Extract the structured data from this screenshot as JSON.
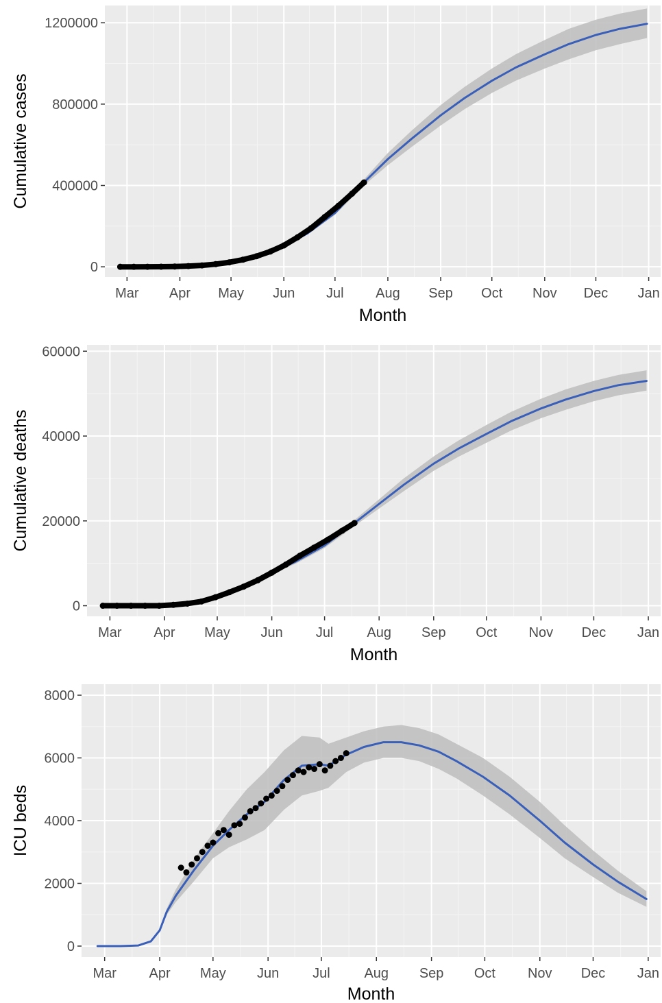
{
  "colors": {
    "panel_background": "#ebebeb",
    "grid_major": "#ffffff",
    "grid_minor": "#f5f5f5",
    "line": "#3a5fb8",
    "ribbon": "#bdbdbd",
    "points": "#000000",
    "tick_text": "#4d4d4d",
    "axis_title": "#000000"
  },
  "chart_data": [
    {
      "type": "line",
      "xlabel": "Month",
      "ylabel": "Cumulative cases",
      "x_axis": "date",
      "xlim": [
        "2020-02-17",
        "2021-01-08"
      ],
      "ylim": [
        -50000,
        1285000
      ],
      "grid": true,
      "x_ticks": [
        {
          "date": "2020-03-01",
          "label": "Mar"
        },
        {
          "date": "2020-04-01",
          "label": "Apr"
        },
        {
          "date": "2020-05-01",
          "label": "May"
        },
        {
          "date": "2020-06-01",
          "label": "Jun"
        },
        {
          "date": "2020-07-01",
          "label": "Jul"
        },
        {
          "date": "2020-08-01",
          "label": "Aug"
        },
        {
          "date": "2020-09-01",
          "label": "Sep"
        },
        {
          "date": "2020-10-01",
          "label": "Oct"
        },
        {
          "date": "2020-11-01",
          "label": "Nov"
        },
        {
          "date": "2020-12-01",
          "label": "Dec"
        },
        {
          "date": "2021-01-01",
          "label": "Jan"
        }
      ],
      "y_ticks": [
        {
          "value": 0,
          "label": "0"
        },
        {
          "value": 400000,
          "label": "400000"
        },
        {
          "value": 800000,
          "label": "800000"
        },
        {
          "value": 1200000,
          "label": "1200000"
        }
      ],
      "observed": {
        "style": "points",
        "x": [
          "2020-02-26",
          "2020-03-05",
          "2020-03-13",
          "2020-03-21",
          "2020-03-29",
          "2020-04-06",
          "2020-04-14",
          "2020-04-22",
          "2020-04-30",
          "2020-05-08",
          "2020-05-16",
          "2020-05-24",
          "2020-06-01",
          "2020-06-09",
          "2020-06-17",
          "2020-06-25",
          "2020-07-03",
          "2020-07-11",
          "2020-07-18"
        ],
        "y": [
          0,
          0,
          200,
          500,
          1500,
          3500,
          7000,
          13000,
          22000,
          35000,
          52000,
          75000,
          105000,
          145000,
          190000,
          245000,
          300000,
          360000,
          415000
        ]
      },
      "series": [
        {
          "x": [
            "2020-02-26",
            "2020-03-15",
            "2020-04-01",
            "2020-04-15",
            "2020-05-01",
            "2020-05-15",
            "2020-06-01",
            "2020-06-15",
            "2020-07-01",
            "2020-07-18",
            "2020-08-01",
            "2020-08-15",
            "2020-09-01",
            "2020-09-15",
            "2020-10-01",
            "2020-10-15",
            "2020-11-01",
            "2020-11-15",
            "2020-12-01",
            "2020-12-15",
            "2020-12-31"
          ],
          "y": [
            0,
            500,
            2000,
            7000,
            20000,
            45000,
            100000,
            165000,
            265000,
            415000,
            530000,
            630000,
            745000,
            830000,
            915000,
            980000,
            1045000,
            1095000,
            1140000,
            1170000,
            1195000
          ],
          "lower": [
            0,
            500,
            2000,
            7000,
            20000,
            45000,
            100000,
            160000,
            255000,
            400000,
            500000,
            590000,
            695000,
            775000,
            855000,
            915000,
            975000,
            1020000,
            1065000,
            1095000,
            1125000
          ],
          "upper": [
            0,
            500,
            2000,
            7000,
            20000,
            45000,
            100000,
            170000,
            275000,
            430000,
            560000,
            670000,
            795000,
            885000,
            975000,
            1045000,
            1115000,
            1170000,
            1215000,
            1245000,
            1270000
          ]
        }
      ]
    },
    {
      "type": "line",
      "xlabel": "Month",
      "ylabel": "Cumulative deaths",
      "x_axis": "date",
      "xlim": [
        "2020-02-17",
        "2021-01-08"
      ],
      "ylim": [
        -2500,
        61500
      ],
      "grid": true,
      "x_ticks": [
        {
          "date": "2020-03-01",
          "label": "Mar"
        },
        {
          "date": "2020-04-01",
          "label": "Apr"
        },
        {
          "date": "2020-05-01",
          "label": "May"
        },
        {
          "date": "2020-06-01",
          "label": "Jun"
        },
        {
          "date": "2020-07-01",
          "label": "Jul"
        },
        {
          "date": "2020-08-01",
          "label": "Aug"
        },
        {
          "date": "2020-09-01",
          "label": "Sep"
        },
        {
          "date": "2020-10-01",
          "label": "Oct"
        },
        {
          "date": "2020-11-01",
          "label": "Nov"
        },
        {
          "date": "2020-12-01",
          "label": "Dec"
        },
        {
          "date": "2021-01-01",
          "label": "Jan"
        }
      ],
      "y_ticks": [
        {
          "value": 0,
          "label": "0"
        },
        {
          "value": 20000,
          "label": "20000"
        },
        {
          "value": 40000,
          "label": "40000"
        },
        {
          "value": 60000,
          "label": "60000"
        }
      ],
      "observed": {
        "style": "points",
        "x": [
          "2020-02-26",
          "2020-03-05",
          "2020-03-13",
          "2020-03-21",
          "2020-03-29",
          "2020-04-06",
          "2020-04-14",
          "2020-04-22",
          "2020-04-30",
          "2020-05-08",
          "2020-05-16",
          "2020-05-24",
          "2020-06-01",
          "2020-06-09",
          "2020-06-17",
          "2020-06-25",
          "2020-07-03",
          "2020-07-11",
          "2020-07-18"
        ],
        "y": [
          0,
          0,
          0,
          0,
          0,
          200,
          500,
          1000,
          2000,
          3200,
          4500,
          6000,
          7800,
          9700,
          11800,
          13700,
          15600,
          17700,
          19500
        ]
      },
      "series": [
        {
          "x": [
            "2020-02-26",
            "2020-03-15",
            "2020-04-01",
            "2020-04-15",
            "2020-05-01",
            "2020-05-15",
            "2020-06-01",
            "2020-06-15",
            "2020-07-01",
            "2020-07-18",
            "2020-08-01",
            "2020-08-15",
            "2020-09-01",
            "2020-09-15",
            "2020-10-01",
            "2020-10-15",
            "2020-11-01",
            "2020-11-15",
            "2020-12-01",
            "2020-12-15",
            "2020-12-31"
          ],
          "y": [
            0,
            0,
            100,
            700,
            2000,
            4000,
            7800,
            10500,
            14200,
            19500,
            24000,
            28500,
            33500,
            37000,
            40500,
            43500,
            46500,
            48600,
            50600,
            52000,
            53000
          ],
          "lower": [
            0,
            0,
            100,
            700,
            2000,
            3800,
            7500,
            10000,
            13600,
            18800,
            22900,
            27000,
            31800,
            35100,
            38400,
            41300,
            44200,
            46200,
            48200,
            49600,
            50700
          ],
          "upper": [
            0,
            0,
            100,
            700,
            2000,
            4200,
            8100,
            11000,
            14800,
            20200,
            25100,
            30000,
            35200,
            38900,
            42600,
            45700,
            48800,
            51000,
            53000,
            54400,
            55500
          ]
        }
      ]
    },
    {
      "type": "line",
      "xlabel": "Month",
      "ylabel": "ICU beds",
      "x_axis": "date",
      "xlim": [
        "2020-02-17",
        "2021-01-08"
      ],
      "ylim": [
        -350,
        8350
      ],
      "grid": true,
      "x_ticks": [
        {
          "date": "2020-03-01",
          "label": "Mar"
        },
        {
          "date": "2020-04-01",
          "label": "Apr"
        },
        {
          "date": "2020-05-01",
          "label": "May"
        },
        {
          "date": "2020-06-01",
          "label": "Jun"
        },
        {
          "date": "2020-07-01",
          "label": "Jul"
        },
        {
          "date": "2020-08-01",
          "label": "Aug"
        },
        {
          "date": "2020-09-01",
          "label": "Sep"
        },
        {
          "date": "2020-10-01",
          "label": "Oct"
        },
        {
          "date": "2020-11-01",
          "label": "Nov"
        },
        {
          "date": "2020-12-01",
          "label": "Dec"
        },
        {
          "date": "2021-01-01",
          "label": "Jan"
        }
      ],
      "y_ticks": [
        {
          "value": 0,
          "label": "0"
        },
        {
          "value": 2000,
          "label": "2000"
        },
        {
          "value": 4000,
          "label": "4000"
        },
        {
          "value": 6000,
          "label": "6000"
        },
        {
          "value": 8000,
          "label": "8000"
        }
      ],
      "observed": {
        "style": "points",
        "x": [
          "2020-04-13",
          "2020-04-16",
          "2020-04-19",
          "2020-04-22",
          "2020-04-25",
          "2020-04-28",
          "2020-05-01",
          "2020-05-04",
          "2020-05-07",
          "2020-05-10",
          "2020-05-13",
          "2020-05-16",
          "2020-05-19",
          "2020-05-22",
          "2020-05-25",
          "2020-05-28",
          "2020-05-31",
          "2020-06-03",
          "2020-06-06",
          "2020-06-09",
          "2020-06-12",
          "2020-06-15",
          "2020-06-18",
          "2020-06-21",
          "2020-06-24",
          "2020-06-27",
          "2020-06-30",
          "2020-07-03",
          "2020-07-06",
          "2020-07-09",
          "2020-07-12",
          "2020-07-15"
        ],
        "y": [
          2500,
          2350,
          2600,
          2800,
          3000,
          3200,
          3300,
          3600,
          3700,
          3550,
          3850,
          3900,
          4100,
          4300,
          4400,
          4550,
          4700,
          4800,
          4950,
          5100,
          5300,
          5450,
          5600,
          5550,
          5700,
          5650,
          5800,
          5600,
          5750,
          5900,
          6000,
          6150
        ]
      },
      "series": [
        {
          "x": [
            "2020-02-26",
            "2020-03-10",
            "2020-03-20",
            "2020-03-27",
            "2020-04-01",
            "2020-04-05",
            "2020-04-10",
            "2020-04-20",
            "2020-05-01",
            "2020-05-10",
            "2020-05-20",
            "2020-05-30",
            "2020-06-10",
            "2020-06-20",
            "2020-06-30",
            "2020-07-05",
            "2020-07-15",
            "2020-07-25",
            "2020-08-05",
            "2020-08-15",
            "2020-08-25",
            "2020-09-05",
            "2020-09-15",
            "2020-09-30",
            "2020-10-15",
            "2020-11-01",
            "2020-11-15",
            "2020-12-01",
            "2020-12-15",
            "2020-12-31"
          ],
          "y": [
            0,
            0,
            20,
            150,
            500,
            1100,
            1600,
            2400,
            3200,
            3700,
            4200,
            4600,
            5300,
            5750,
            5800,
            5750,
            6100,
            6350,
            6500,
            6500,
            6400,
            6200,
            5900,
            5400,
            4800,
            4000,
            3300,
            2600,
            2050,
            1500
          ],
          "lower": [
            0,
            0,
            20,
            140,
            470,
            1000,
            1400,
            2050,
            2800,
            3150,
            3400,
            3700,
            4350,
            4800,
            4950,
            5050,
            5550,
            5850,
            6000,
            6000,
            5900,
            5650,
            5350,
            4800,
            4200,
            3450,
            2800,
            2200,
            1700,
            1250
          ],
          "upper": [
            0,
            0,
            20,
            160,
            530,
            1200,
            1800,
            2750,
            3600,
            4300,
            5000,
            5550,
            6250,
            6700,
            6650,
            6450,
            6650,
            6850,
            7000,
            7050,
            6950,
            6750,
            6450,
            6000,
            5400,
            4600,
            3850,
            3050,
            2400,
            1750
          ]
        }
      ]
    }
  ]
}
